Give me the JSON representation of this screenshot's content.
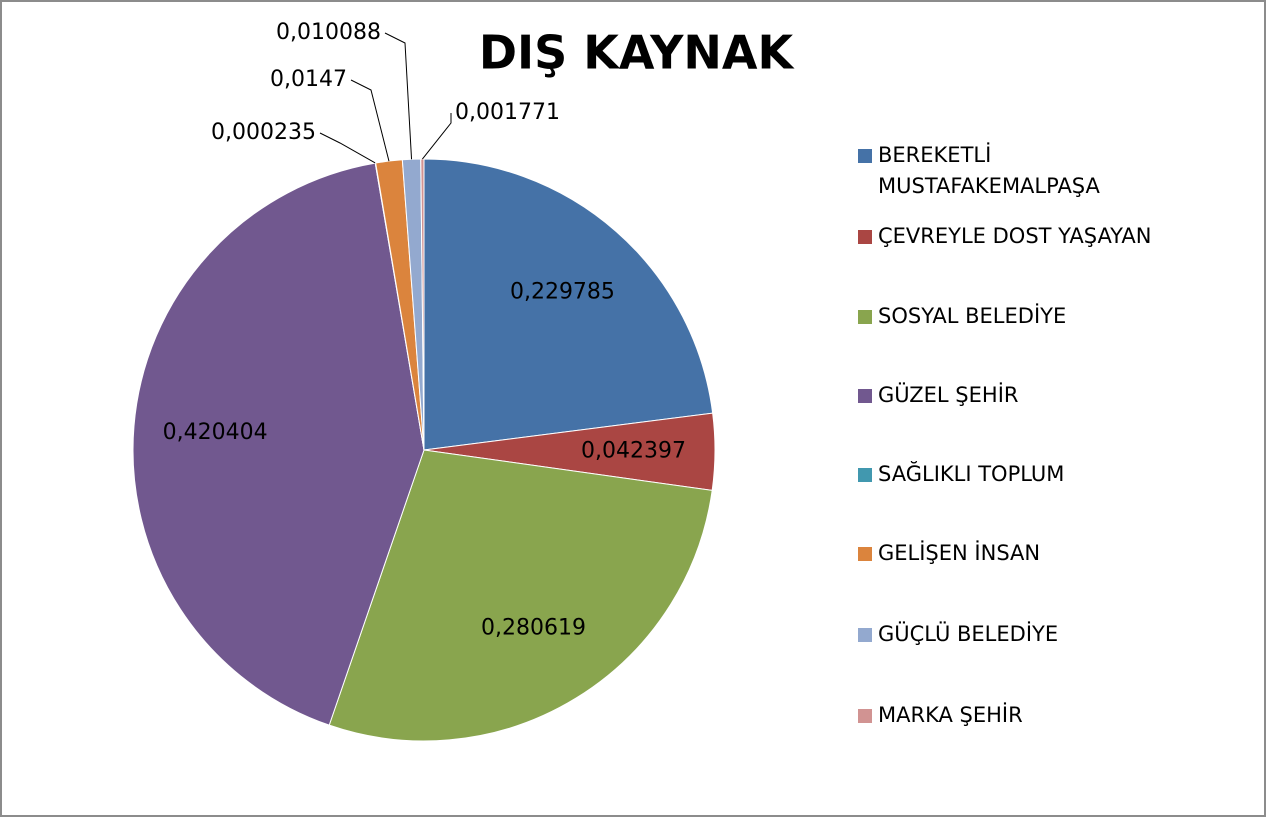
{
  "chart_data": {
    "type": "pie",
    "title": "DIŞ KAYNAK",
    "categories": [
      "BEREKETLİ MUSTAFAKEMALPAŞA",
      "ÇEVREYLE DOST YAŞAYAN",
      "SOSYAL BELEDİYE",
      "GÜZEL ŞEHİR",
      "SAĞLIKLI TOPLUM",
      "GELİŞEN İNSAN",
      "GÜÇLÜ BELEDİYE",
      "MARKA ŞEHİR"
    ],
    "values": [
      0.229785,
      0.042397,
      0.280619,
      0.420404,
      0.000235,
      0.0147,
      0.010088,
      0.001771
    ],
    "value_labels": [
      "0,229785",
      "0,042397",
      "0,280619",
      "0,420404",
      "0,000235",
      "0,0147",
      "0,010088",
      "0,001771"
    ],
    "colors": [
      "#4572a7",
      "#aa4643",
      "#89a54e",
      "#71588f",
      "#4198af",
      "#db843d",
      "#93a9cf",
      "#d19392"
    ],
    "legend": "right"
  }
}
